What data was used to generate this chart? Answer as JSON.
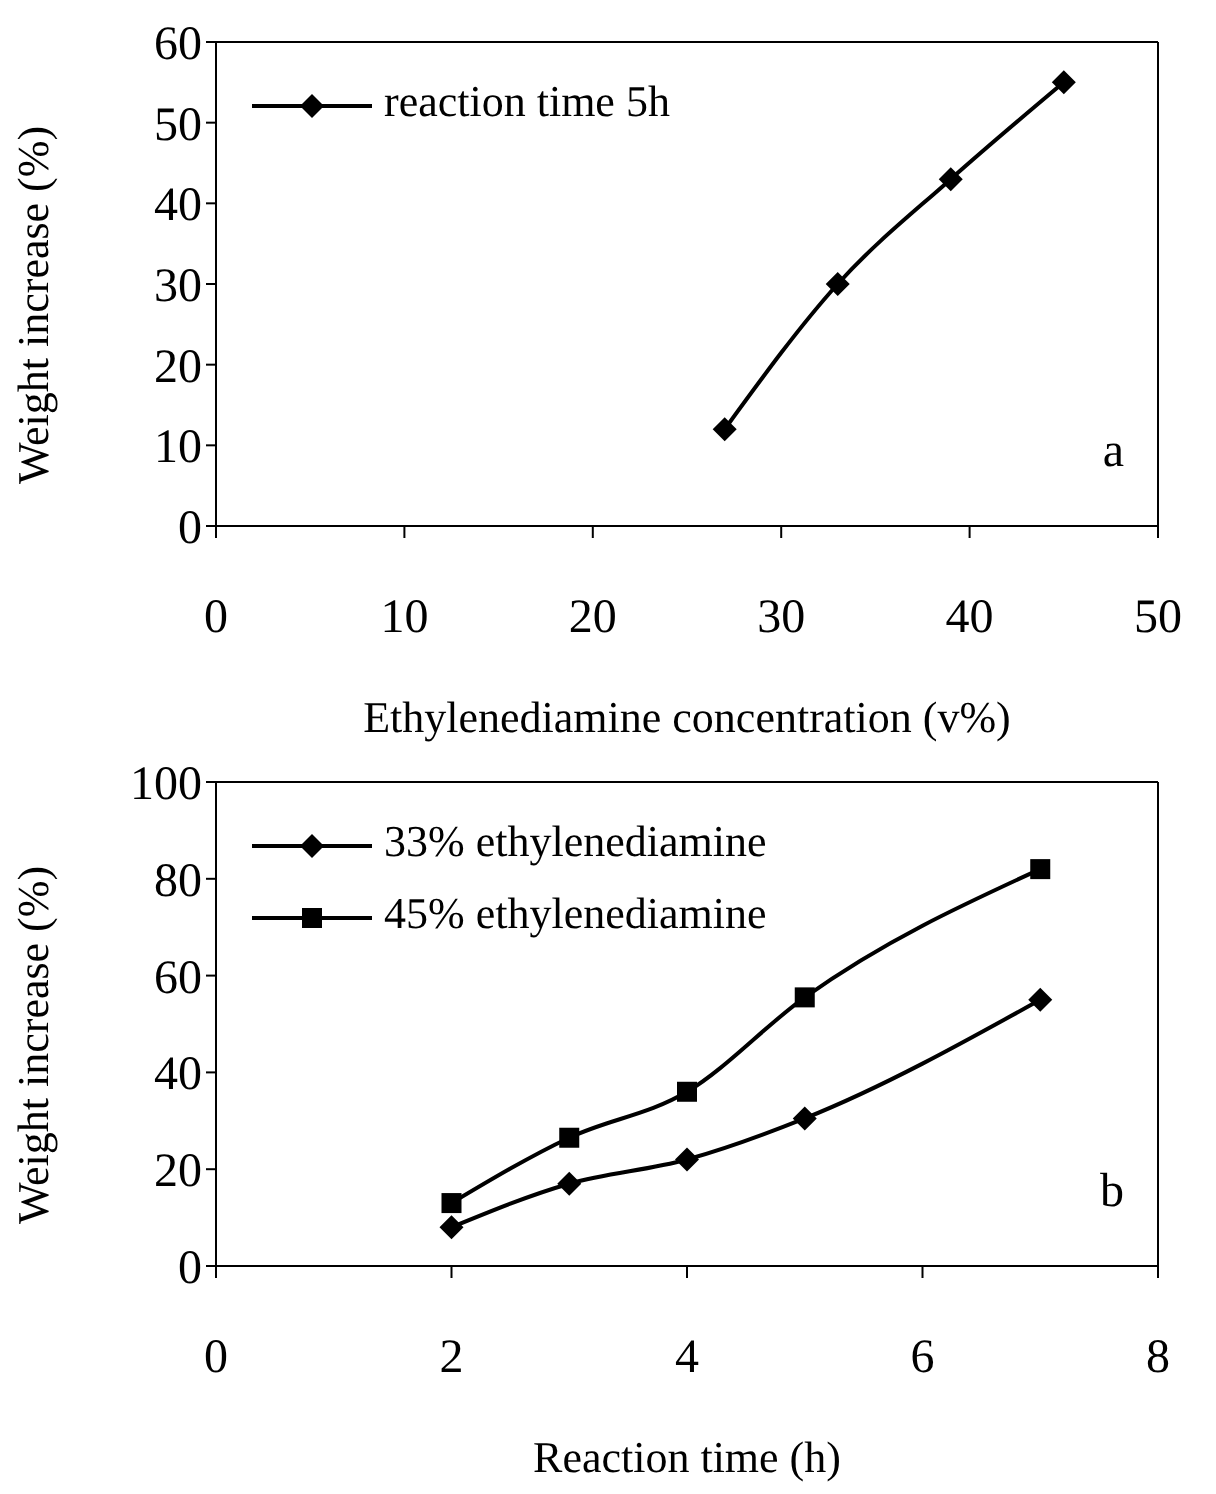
{
  "chart_data": [
    {
      "type": "line",
      "xlabel": "Ethylenediamine concentration (v%)",
      "ylabel": "Weight increase (%)",
      "xlim": [
        0,
        50
      ],
      "xticks": [
        0,
        10,
        20,
        30,
        40,
        50
      ],
      "ylim": [
        0,
        60
      ],
      "yticks": [
        0,
        10,
        20,
        30,
        40,
        50,
        60
      ],
      "grid": false,
      "legend": "top left",
      "annotations": [
        "a"
      ],
      "series": [
        {
          "name": "reaction time 5h",
          "color": "#000000",
          "marker": "diamond",
          "x": [
            27,
            33,
            39,
            45
          ],
          "values": [
            12,
            30,
            43,
            55
          ]
        }
      ]
    },
    {
      "type": "line",
      "xlabel": "Reaction time (h)",
      "ylabel": "Weight increase (%)",
      "xlim": [
        0,
        8
      ],
      "xticks": [
        0,
        2,
        4,
        6,
        8
      ],
      "ylim": [
        0,
        100
      ],
      "yticks": [
        0,
        20,
        40,
        60,
        80,
        100
      ],
      "grid": false,
      "legend": "top left",
      "annotations": [
        "b"
      ],
      "series": [
        {
          "name": "33% ethylenediamine",
          "color": "#000000",
          "marker": "diamond",
          "x": [
            2,
            3,
            4,
            5,
            7
          ],
          "values": [
            8,
            17,
            22,
            30.5,
            55
          ]
        },
        {
          "name": "45% ethylenediamine",
          "color": "#000000",
          "marker": "square",
          "x": [
            2,
            3,
            4,
            5,
            7
          ],
          "values": [
            13,
            26.5,
            36,
            55.5,
            82
          ]
        }
      ]
    }
  ]
}
